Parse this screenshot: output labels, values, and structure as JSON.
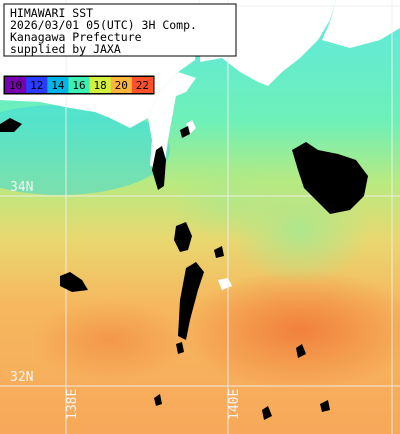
{
  "caption": {
    "lines": [
      "HIMAWARI SST",
      "2026/03/01 05(UTC) 3H Comp.",
      "Kanagawa Prefecture",
      "supplied by JAXA"
    ]
  },
  "legend": {
    "labels": [
      "10",
      "12",
      "14",
      "16",
      "18",
      "20",
      "22"
    ],
    "colors": [
      "#7a00b4",
      "#2a3cff",
      "#00b4e6",
      "#3cf0b4",
      "#d2f03c",
      "#ffb43c",
      "#ff5028"
    ]
  },
  "grid": {
    "lat_labels": [
      "34N",
      "32N"
    ],
    "lon_labels": [
      "138E",
      "140E"
    ]
  },
  "colors": {
    "land": "#ffffff",
    "cloud": "#000000",
    "cool_sea": "#5ef0c8",
    "mid_sea": "#cfe87a",
    "warm_sea": "#f7b45c",
    "hot_sea": "#f08a40",
    "grid": "#e0e0e0"
  }
}
